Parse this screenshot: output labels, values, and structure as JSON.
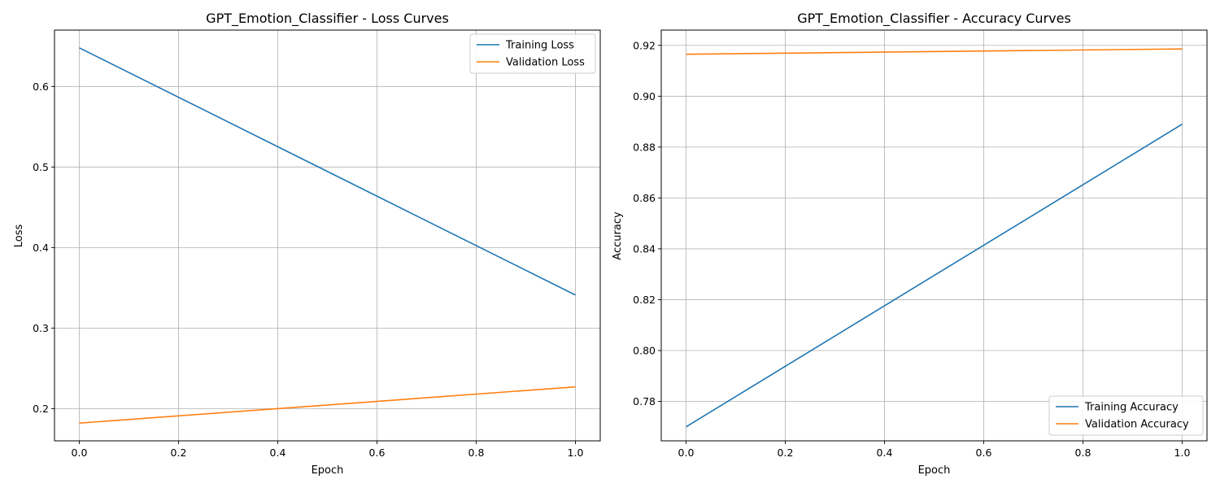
{
  "chart_data": [
    {
      "type": "line",
      "title": "GPT_Emotion_Classifier - Loss Curves",
      "xlabel": "Epoch",
      "ylabel": "Loss",
      "xlim": [
        -0.05,
        1.05
      ],
      "ylim": [
        0.16,
        0.67
      ],
      "xticks": [
        0.0,
        0.2,
        0.4,
        0.6,
        0.8,
        1.0
      ],
      "xtick_labels": [
        "0.0",
        "0.2",
        "0.4",
        "0.6",
        "0.8",
        "1.0"
      ],
      "yticks": [
        0.2,
        0.3,
        0.4,
        0.5,
        0.6
      ],
      "ytick_labels": [
        "0.2",
        "0.3",
        "0.4",
        "0.5",
        "0.6"
      ],
      "grid": true,
      "legend_position": "upper right",
      "x": [
        0.0,
        1.0
      ],
      "series": [
        {
          "name": "Training Loss",
          "color": "#1f77b4",
          "values": [
            0.648,
            0.341
          ]
        },
        {
          "name": "Validation Loss",
          "color": "#ff7f0e",
          "values": [
            0.182,
            0.227
          ]
        }
      ]
    },
    {
      "type": "line",
      "title": "GPT_Emotion_Classifier - Accuracy Curves",
      "xlabel": "Epoch",
      "ylabel": "Accuracy",
      "xlim": [
        -0.05,
        1.05
      ],
      "ylim": [
        0.7645,
        0.926
      ],
      "xticks": [
        0.0,
        0.2,
        0.4,
        0.6,
        0.8,
        1.0
      ],
      "xtick_labels": [
        "0.0",
        "0.2",
        "0.4",
        "0.6",
        "0.8",
        "1.0"
      ],
      "yticks": [
        0.78,
        0.8,
        0.82,
        0.84,
        0.86,
        0.88,
        0.9,
        0.92
      ],
      "ytick_labels": [
        "0.78",
        "0.80",
        "0.82",
        "0.84",
        "0.86",
        "0.88",
        "0.90",
        "0.92"
      ],
      "grid": true,
      "legend_position": "lower right",
      "x": [
        0.0,
        1.0
      ],
      "series": [
        {
          "name": "Training Accuracy",
          "color": "#1f77b4",
          "values": [
            0.77,
            0.889
          ]
        },
        {
          "name": "Validation Accuracy",
          "color": "#ff7f0e",
          "values": [
            0.9165,
            0.9186
          ]
        }
      ]
    }
  ]
}
